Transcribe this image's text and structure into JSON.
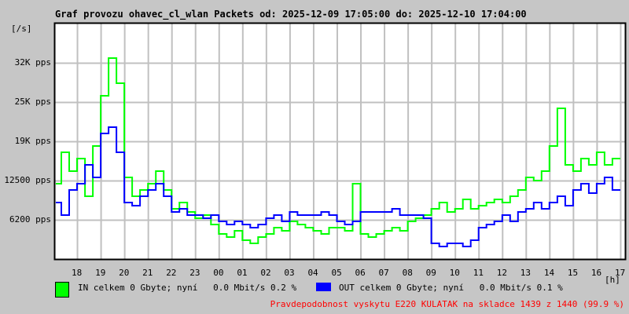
{
  "chart_data": {
    "type": "line",
    "title": "Graf provozu ohavec_cl_wlan Packets od: 2025-12-09 17:05:00 do: 2025-12-10 17:04:00",
    "ylabel": "[/s]",
    "xlabel": "[h]",
    "ylim": [
      0,
      37500
    ],
    "y_ticks": [
      {
        "value": 6200,
        "label": "6200 pps"
      },
      {
        "value": 12500,
        "label": "12500 pps"
      },
      {
        "value": 19000,
        "label": "19K pps"
      },
      {
        "value": 25000,
        "label": "25K pps"
      },
      {
        "value": 32000,
        "label": "32K pps"
      }
    ],
    "x_ticks": [
      "18",
      "19",
      "20",
      "21",
      "22",
      "23",
      "00",
      "01",
      "02",
      "03",
      "04",
      "05",
      "06",
      "07",
      "08",
      "09",
      "10",
      "11",
      "12",
      "13",
      "14",
      "15",
      "16",
      "17"
    ],
    "grid": true,
    "x_step_minutes": 20,
    "x_start": "17:00",
    "series": [
      {
        "name": "IN",
        "color": "#00ff00",
        "values": [
          12000,
          17000,
          14000,
          16000,
          10000,
          18000,
          26000,
          32000,
          28000,
          13000,
          10000,
          11000,
          12000,
          14000,
          11000,
          8000,
          9000,
          7500,
          6500,
          7000,
          5500,
          4000,
          3500,
          4500,
          3000,
          2500,
          3500,
          4000,
          5000,
          4500,
          6000,
          5500,
          5000,
          4500,
          4000,
          5000,
          5000,
          4500,
          12000,
          4000,
          3500,
          4000,
          4500,
          5000,
          4500,
          6000,
          6500,
          7000,
          8000,
          9000,
          7500,
          8000,
          9500,
          8000,
          8500,
          9000,
          9500,
          9000,
          10000,
          11000,
          13000,
          12500,
          14000,
          18000,
          24000,
          15000,
          14000,
          16000,
          15000,
          17000,
          15000,
          16000
        ]
      },
      {
        "name": "OUT",
        "color": "#0000ff",
        "values": [
          9000,
          7000,
          11000,
          12000,
          15000,
          13000,
          20000,
          21000,
          17000,
          9000,
          8500,
          10000,
          11000,
          12000,
          10000,
          7500,
          8000,
          7000,
          7000,
          6500,
          7000,
          6000,
          5500,
          6000,
          5500,
          5000,
          5500,
          6500,
          7000,
          6000,
          7500,
          7000,
          7000,
          7000,
          7500,
          7000,
          6000,
          5500,
          6000,
          7500,
          7500,
          7500,
          7500,
          8000,
          7000,
          7000,
          7000,
          6500,
          2500,
          2000,
          2500,
          2500,
          2000,
          3000,
          5000,
          5500,
          6000,
          7000,
          6000,
          7500,
          8000,
          9000,
          8000,
          9000,
          10000,
          8500,
          11000,
          12000,
          10500,
          12000,
          13000,
          11000
        ]
      }
    ]
  },
  "legend": {
    "in_text": "IN celkem 0 Gbyte; nyní   0.0 Mbit/s 0.2 %",
    "out_text": "OUT celkem 0 Gbyte; nyní   0.0 Mbit/s 0.1 %",
    "in_color": "#00ff00",
    "out_color": "#0000ff"
  },
  "note": "Pravdepodobnost vyskytu E220 KULATAK na skladce 1439 z 1440 (99.9 %)"
}
